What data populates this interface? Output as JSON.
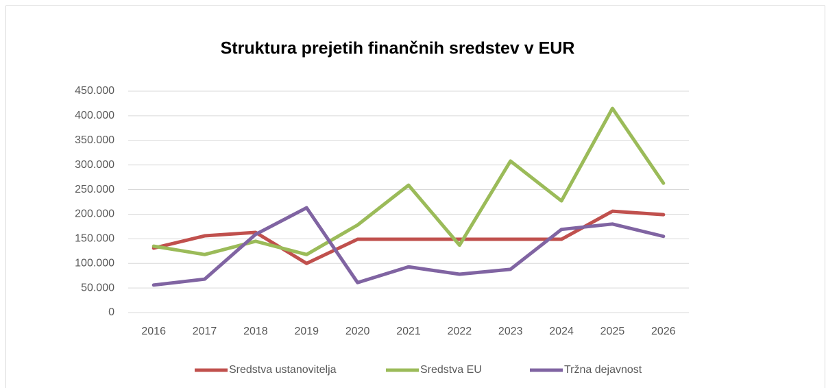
{
  "chart_data": {
    "type": "line",
    "title": "Struktura prejetih finančnih sredstev v EUR",
    "categories": [
      "2016",
      "2017",
      "2018",
      "2019",
      "2020",
      "2021",
      "2022",
      "2023",
      "2024",
      "2025",
      "2026"
    ],
    "series": [
      {
        "name": "Sredstva ustanovitelja",
        "color": "#c0504d",
        "values": [
          131000,
          156000,
          163000,
          100000,
          149000,
          149000,
          149000,
          149000,
          149000,
          206000,
          199000
        ]
      },
      {
        "name": "Sredstva EU",
        "color": "#9bbb59",
        "values": [
          135000,
          118000,
          145000,
          118000,
          178000,
          259000,
          137000,
          308000,
          227000,
          415000,
          263000
        ]
      },
      {
        "name": "Tržna dejavnost",
        "color": "#8064a2",
        "values": [
          56000,
          68000,
          159000,
          213000,
          61000,
          93000,
          78000,
          88000,
          169000,
          180000,
          155000
        ]
      }
    ],
    "ylim": [
      0,
      450000
    ],
    "yticks": [
      0,
      {
        "value": 50000,
        "label": "50.000"
      },
      {
        "value": 100000,
        "label": "100.000"
      },
      {
        "value": 150000,
        "label": "150.000"
      },
      {
        "value": 200000,
        "label": "200.000"
      },
      {
        "value": 250000,
        "label": "250.000"
      },
      {
        "value": 300000,
        "label": "300.000"
      },
      {
        "value": 350000,
        "label": "350.000"
      },
      {
        "value": 400000,
        "label": "400.000"
      },
      {
        "value": 450000,
        "label": "450.000"
      }
    ],
    "grid": true,
    "legend": "bottom"
  }
}
